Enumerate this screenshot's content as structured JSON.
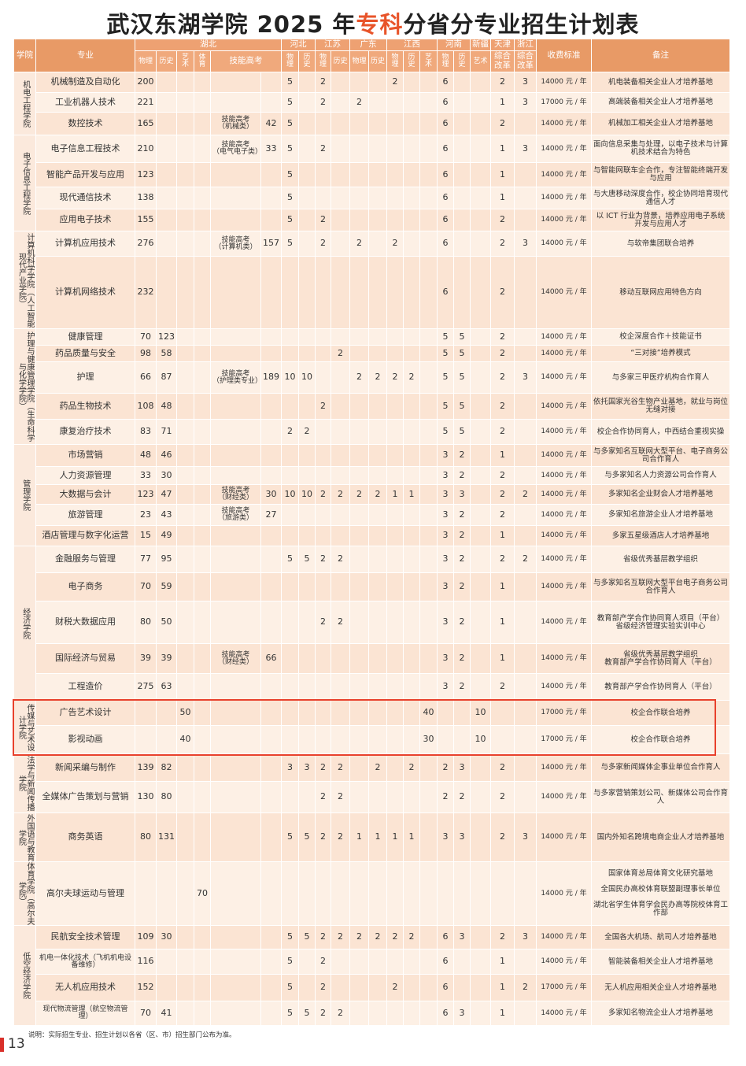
{
  "title": {
    "before": "武汉东湖学院 2025 年",
    "highlight": "专科",
    "after": "分省分专业招生计划表"
  },
  "header": {
    "college": "学院",
    "major": "专业",
    "fee": "收费标准",
    "remark": "备注",
    "provinces": [
      "湖北",
      "河北",
      "江苏",
      "广东",
      "江西",
      "河南",
      "新疆",
      "天津",
      "浙江"
    ],
    "subjects": [
      "物理",
      "历史",
      "艺术",
      "体育",
      "技能高考",
      "物理",
      "历史",
      "物理",
      "历史",
      "物理",
      "历史",
      "物理",
      "历史",
      "艺术",
      "物理",
      "历史",
      "艺术",
      "综合改革",
      "综合改革"
    ]
  },
  "colleges": [
    {
      "name": "机电工程学院",
      "majors": [
        {
          "name": "机械制造及自动化",
          "cells": [
            200,
            null,
            null,
            null,
            null,
            null,
            5,
            null,
            2,
            null,
            null,
            null,
            2,
            null,
            null,
            6,
            null,
            null,
            2,
            3,
            "14000 元 / 年",
            "机电装备相关企业人才培养基地"
          ]
        },
        {
          "name": "工业机器人技术",
          "cells": [
            221,
            null,
            null,
            null,
            null,
            null,
            5,
            null,
            2,
            null,
            2,
            null,
            null,
            null,
            null,
            6,
            null,
            null,
            1,
            3,
            "17000 元 / 年",
            "高端装备相关企业人才培养基地"
          ]
        },
        {
          "name": "数控技术",
          "cells": [
            165,
            null,
            null,
            null,
            "技能高考\n（机械类）",
            42,
            5,
            null,
            null,
            null,
            null,
            null,
            null,
            null,
            null,
            6,
            null,
            null,
            2,
            null,
            "14000 元 / 年",
            "机械加工相关企业人才培养基地"
          ]
        }
      ]
    },
    {
      "name": "电子信息工程学院",
      "majors": [
        {
          "name": "电子信息工程技术",
          "cells": [
            210,
            null,
            null,
            null,
            "技能高考\n（电气电子类）",
            33,
            5,
            null,
            2,
            null,
            null,
            null,
            null,
            null,
            null,
            6,
            null,
            null,
            1,
            3,
            "14000 元 / 年",
            "面向信息采集与处理，以电子技术与计算机技术结合为特色"
          ]
        },
        {
          "name": "智能产品开发与应用",
          "cells": [
            123,
            null,
            null,
            null,
            null,
            null,
            5,
            null,
            null,
            null,
            null,
            null,
            null,
            null,
            null,
            6,
            null,
            null,
            1,
            null,
            "14000 元 / 年",
            "与智能网联车企合作，专注智能终端开发与应用"
          ]
        },
        {
          "name": "现代通信技术",
          "cells": [
            138,
            null,
            null,
            null,
            null,
            null,
            5,
            null,
            null,
            null,
            null,
            null,
            null,
            null,
            null,
            6,
            null,
            null,
            1,
            null,
            "14000 元 / 年",
            "与大唐移动深度合作，校企协同培育现代通信人才"
          ]
        },
        {
          "name": "应用电子技术",
          "cells": [
            155,
            null,
            null,
            null,
            null,
            null,
            5,
            null,
            2,
            null,
            null,
            null,
            null,
            null,
            null,
            6,
            null,
            null,
            2,
            null,
            "14000 元 / 年",
            "以 ICT 行业为背景，培养应用电子系统开发与应用人才"
          ]
        }
      ]
    },
    {
      "name": "计算机科学学院（人工智能现代产业学院）",
      "majors": [
        {
          "name": "计算机应用技术",
          "cells": [
            276,
            null,
            null,
            null,
            "技能高考\n（计算机类）",
            157,
            5,
            null,
            2,
            null,
            2,
            null,
            2,
            null,
            null,
            6,
            null,
            null,
            2,
            3,
            "14000 元 / 年",
            "与软帝集团联合培养"
          ]
        },
        {
          "name": "计算机网络技术",
          "cells": [
            232,
            null,
            null,
            null,
            null,
            null,
            null,
            null,
            null,
            null,
            null,
            null,
            null,
            null,
            null,
            6,
            null,
            null,
            2,
            null,
            "14000 元 / 年",
            "移动互联网应用特色方向"
          ]
        }
      ]
    },
    {
      "name": "护理与健康管理学院（生命科学与化学学院）",
      "majors": [
        {
          "name": "健康管理",
          "cells": [
            70,
            123,
            null,
            null,
            null,
            null,
            null,
            null,
            null,
            null,
            null,
            null,
            null,
            null,
            null,
            5,
            5,
            null,
            2,
            null,
            "14000 元 / 年",
            "校企深度合作＋技能证书"
          ]
        },
        {
          "name": "药品质量与安全",
          "cells": [
            98,
            58,
            null,
            null,
            null,
            null,
            null,
            null,
            null,
            2,
            null,
            null,
            null,
            null,
            null,
            5,
            5,
            null,
            2,
            null,
            "14000 元 / 年",
            "“三对接”培养模式"
          ]
        },
        {
          "name": "护理",
          "cells": [
            66,
            87,
            null,
            null,
            "技能高考\n（护理类专业）",
            189,
            10,
            10,
            null,
            null,
            2,
            2,
            2,
            2,
            null,
            5,
            5,
            null,
            2,
            3,
            "14000 元 / 年",
            "与多家三甲医疗机构合作育人"
          ]
        },
        {
          "name": "药品生物技术",
          "cells": [
            108,
            48,
            null,
            null,
            null,
            null,
            null,
            null,
            2,
            null,
            null,
            null,
            null,
            null,
            null,
            5,
            5,
            null,
            2,
            null,
            "14000 元 / 年",
            "依托国家光谷生物产业基地，就业与岗位无缝对接"
          ]
        },
        {
          "name": "康复治疗技术",
          "cells": [
            83,
            71,
            null,
            null,
            null,
            null,
            2,
            2,
            null,
            null,
            null,
            null,
            null,
            null,
            null,
            5,
            5,
            null,
            2,
            null,
            "14000 元 / 年",
            "校企合作协同育人，中西结合重视实操"
          ]
        }
      ]
    },
    {
      "name": "管理学院",
      "majors": [
        {
          "name": "市场营销",
          "cells": [
            48,
            46,
            null,
            null,
            null,
            null,
            null,
            null,
            null,
            null,
            null,
            null,
            null,
            null,
            null,
            3,
            2,
            null,
            1,
            null,
            "14000 元 / 年",
            "与多家知名互联网大型平台、电子商务公司合作育人"
          ]
        },
        {
          "name": "人力资源管理",
          "cells": [
            33,
            30,
            null,
            null,
            null,
            null,
            null,
            null,
            null,
            null,
            null,
            null,
            null,
            null,
            null,
            3,
            2,
            null,
            2,
            null,
            "14000 元 / 年",
            "与多家知名人力资源公司合作育人"
          ]
        },
        {
          "name": "大数据与会计",
          "cells": [
            123,
            47,
            null,
            null,
            "技能高考\n（财经类）",
            30,
            10,
            10,
            2,
            2,
            2,
            2,
            1,
            1,
            null,
            3,
            3,
            null,
            2,
            2,
            "14000 元 / 年",
            "多家知名企业财会人才培养基地"
          ]
        },
        {
          "name": "旅游管理",
          "cells": [
            23,
            43,
            null,
            null,
            "技能高考\n（旅游类）",
            27,
            null,
            null,
            null,
            null,
            null,
            null,
            null,
            null,
            null,
            3,
            2,
            null,
            2,
            null,
            "14000 元 / 年",
            "多家知名旅游企业人才培养基地"
          ]
        },
        {
          "name": "酒店管理与数字化运营",
          "cells": [
            15,
            49,
            null,
            null,
            null,
            null,
            null,
            null,
            null,
            null,
            null,
            null,
            null,
            null,
            null,
            3,
            2,
            null,
            1,
            null,
            "14000 元 / 年",
            "多家五星级酒店人才培养基地"
          ]
        }
      ]
    },
    {
      "name": "经济学院",
      "majors": [
        {
          "name": "金融服务与管理",
          "cells": [
            77,
            95,
            null,
            null,
            null,
            null,
            5,
            5,
            2,
            2,
            null,
            null,
            null,
            null,
            null,
            3,
            2,
            null,
            2,
            2,
            "14000 元 / 年",
            "省级优秀基层教学组织"
          ]
        },
        {
          "name": "电子商务",
          "cells": [
            70,
            59,
            null,
            null,
            null,
            null,
            null,
            null,
            null,
            null,
            null,
            null,
            null,
            null,
            null,
            3,
            2,
            null,
            1,
            null,
            "14000 元 / 年",
            "与多家知名互联网大型平台电子商务公司合作育人"
          ]
        },
        {
          "name": "财税大数据应用",
          "cells": [
            80,
            50,
            null,
            null,
            null,
            null,
            null,
            null,
            2,
            2,
            null,
            null,
            null,
            null,
            null,
            3,
            2,
            null,
            1,
            null,
            "14000 元 / 年",
            "教育部产学合作协同育人项目（平台）\n省级经济管理实验实训中心"
          ]
        },
        {
          "name": "国际经济与贸易",
          "cells": [
            39,
            39,
            null,
            null,
            "技能高考\n（财经类）",
            66,
            null,
            null,
            null,
            null,
            null,
            null,
            null,
            null,
            null,
            3,
            2,
            null,
            1,
            null,
            "14000 元 / 年",
            "省级优秀基层教学组织\n教育部产学合作协同育人（平台）"
          ]
        },
        {
          "name": "工程造价",
          "cells": [
            275,
            63,
            null,
            null,
            null,
            null,
            null,
            null,
            null,
            null,
            null,
            null,
            null,
            null,
            null,
            3,
            2,
            null,
            2,
            null,
            "14000 元 / 年",
            "教育部产学合作协同育人（平台）"
          ]
        }
      ]
    },
    {
      "name": "传媒与艺术设计学院",
      "majors": [
        {
          "name": "广告艺术设计",
          "cells": [
            null,
            null,
            50,
            null,
            null,
            null,
            null,
            null,
            null,
            null,
            null,
            null,
            null,
            null,
            40,
            null,
            null,
            10,
            null,
            null,
            "17000 元 / 年",
            "校企合作联合培养"
          ]
        },
        {
          "name": "影视动画",
          "cells": [
            null,
            null,
            40,
            null,
            null,
            null,
            null,
            null,
            null,
            null,
            null,
            null,
            null,
            null,
            30,
            null,
            null,
            10,
            null,
            null,
            "17000 元 / 年",
            "校企合作联合培养"
          ]
        }
      ]
    },
    {
      "name": "法学与新闻传播学院",
      "majors": [
        {
          "name": "新闻采编与制作",
          "cells": [
            139,
            82,
            null,
            null,
            null,
            null,
            3,
            3,
            2,
            2,
            null,
            2,
            null,
            2,
            null,
            2,
            3,
            null,
            2,
            null,
            "14000 元 / 年",
            "与多家新闻媒体企事业单位合作育人"
          ]
        },
        {
          "name": "全媒体广告策划与营销",
          "cells": [
            130,
            80,
            null,
            null,
            null,
            null,
            null,
            null,
            2,
            2,
            null,
            null,
            null,
            null,
            null,
            2,
            2,
            null,
            2,
            null,
            "14000 元 / 年",
            "与多家营销策划公司、新媒体公司合作育人"
          ]
        }
      ]
    },
    {
      "name": "外国语与教育学院",
      "majors": [
        {
          "name": "商务英语",
          "cells": [
            80,
            131,
            null,
            null,
            null,
            null,
            5,
            5,
            2,
            2,
            1,
            1,
            1,
            1,
            null,
            3,
            3,
            null,
            2,
            3,
            "14000 元 / 年",
            "国内外知名跨境电商企业人才培养基地"
          ]
        }
      ]
    },
    {
      "name": "体育学院（高尔夫学院）",
      "majors": [
        {
          "name": "高尔夫球运动与管理",
          "cells": [
            null,
            null,
            null,
            70,
            null,
            null,
            null,
            null,
            null,
            null,
            null,
            null,
            null,
            null,
            null,
            null,
            null,
            null,
            null,
            null,
            "14000 元 / 年",
            "国家体育总局体育文化研究基地\n\n全国民办高校体育联盟副理事长单位\n\n湖北省学生体育学会民办高等院校体育工作部"
          ]
        }
      ]
    },
    {
      "name": "低空经济学院",
      "majors": [
        {
          "name": "民航安全技术管理",
          "cells": [
            109,
            30,
            null,
            null,
            null,
            null,
            5,
            5,
            2,
            2,
            2,
            2,
            2,
            2,
            null,
            6,
            3,
            null,
            2,
            3,
            "14000 元 / 年",
            "全国各大机场、航司人才培养基地"
          ]
        },
        {
          "name": "机电一体化技术（飞机机电设备维修）",
          "cells": [
            116,
            null,
            null,
            null,
            null,
            null,
            5,
            null,
            2,
            null,
            null,
            null,
            null,
            null,
            null,
            6,
            null,
            null,
            1,
            null,
            "14000 元 / 年",
            "智能装备相关企业人才培养基地"
          ]
        },
        {
          "name": "无人机应用技术",
          "cells": [
            152,
            null,
            null,
            null,
            null,
            null,
            5,
            null,
            2,
            null,
            null,
            null,
            2,
            null,
            null,
            6,
            null,
            null,
            1,
            2,
            "17000 元 / 年",
            "无人机应用相关企业人才培养基地"
          ]
        },
        {
          "name": "现代物流管理（航空物流管理）",
          "cells": [
            70,
            41,
            null,
            null,
            null,
            null,
            5,
            5,
            2,
            2,
            null,
            null,
            null,
            null,
            null,
            6,
            3,
            null,
            1,
            null,
            "14000 元 / 年",
            "多家知名物流企业人才培养基地"
          ]
        }
      ]
    }
  ],
  "footer": {
    "note": "说明：实际招生专业、招生计划以各省（区、市）招生部门公布为准。",
    "page": "13"
  }
}
